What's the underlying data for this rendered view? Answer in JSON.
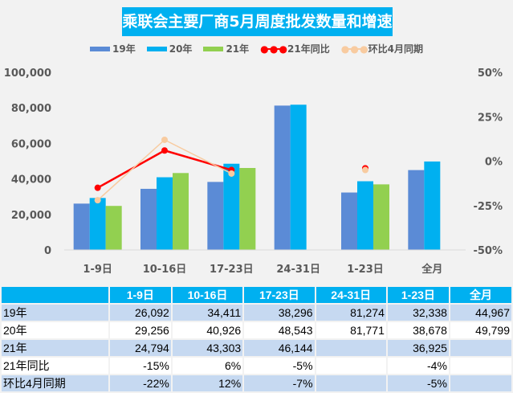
{
  "title": "乘联会主要厂商5月周度批发数量和增速",
  "colors": {
    "y19": "#5b8bd6",
    "y20": "#00b0f0",
    "y21": "#92d050",
    "yoy": "#ff0000",
    "mom": "#f8cba0",
    "title_bg": "#00b0f0"
  },
  "chart_data": {
    "type": "bar+line",
    "title": "乘联会主要厂商5月周度批发数量和增速",
    "categories": [
      "1-9日",
      "10-16日",
      "17-23日",
      "24-31日",
      "1-23日",
      "全月"
    ],
    "ylim": [
      0,
      100000
    ],
    "y_ticks": [
      "0",
      "20,000",
      "40,000",
      "60,000",
      "80,000",
      "100,000"
    ],
    "y2lim": [
      -50,
      50
    ],
    "y2_ticks": [
      "-50%",
      "-25%",
      "0%",
      "25%",
      "50%"
    ],
    "legend_position": "top",
    "series": [
      {
        "name": "19年",
        "type": "bar",
        "values": [
          26092,
          34411,
          38296,
          81274,
          32338,
          44967
        ]
      },
      {
        "name": "20年",
        "type": "bar",
        "values": [
          29256,
          40926,
          48543,
          81771,
          38678,
          49799
        ]
      },
      {
        "name": "21年",
        "type": "bar",
        "values": [
          24794,
          43303,
          46144,
          null,
          36925,
          null
        ]
      },
      {
        "name": "21年同比",
        "type": "line",
        "axis": "secondary",
        "values": [
          -15,
          6,
          -5,
          null,
          -4,
          null
        ]
      },
      {
        "name": "环比4月同期",
        "type": "line",
        "axis": "secondary",
        "values": [
          -22,
          12,
          -7,
          null,
          -5,
          null
        ]
      }
    ]
  },
  "table": {
    "headers": [
      "",
      "1-9日",
      "10-16日",
      "17-23日",
      "24-31日",
      "1-23日",
      "全月"
    ],
    "rows": [
      {
        "label": "19年",
        "cells": [
          "26,092",
          "34,411",
          "38,296",
          "81,274",
          "32,338",
          "44,967"
        ]
      },
      {
        "label": "20年",
        "cells": [
          "29,256",
          "40,926",
          "48,543",
          "81,771",
          "38,678",
          "49,799"
        ]
      },
      {
        "label": "21年",
        "cells": [
          "24,794",
          "43,303",
          "46,144",
          "",
          "36,925",
          ""
        ]
      },
      {
        "label": "21年同比",
        "cells": [
          "-15%",
          "6%",
          "-5%",
          "",
          "-4%",
          ""
        ]
      },
      {
        "label": "环比4月同期",
        "cells": [
          "-22%",
          "12%",
          "-7%",
          "",
          "-5%",
          ""
        ]
      }
    ]
  }
}
